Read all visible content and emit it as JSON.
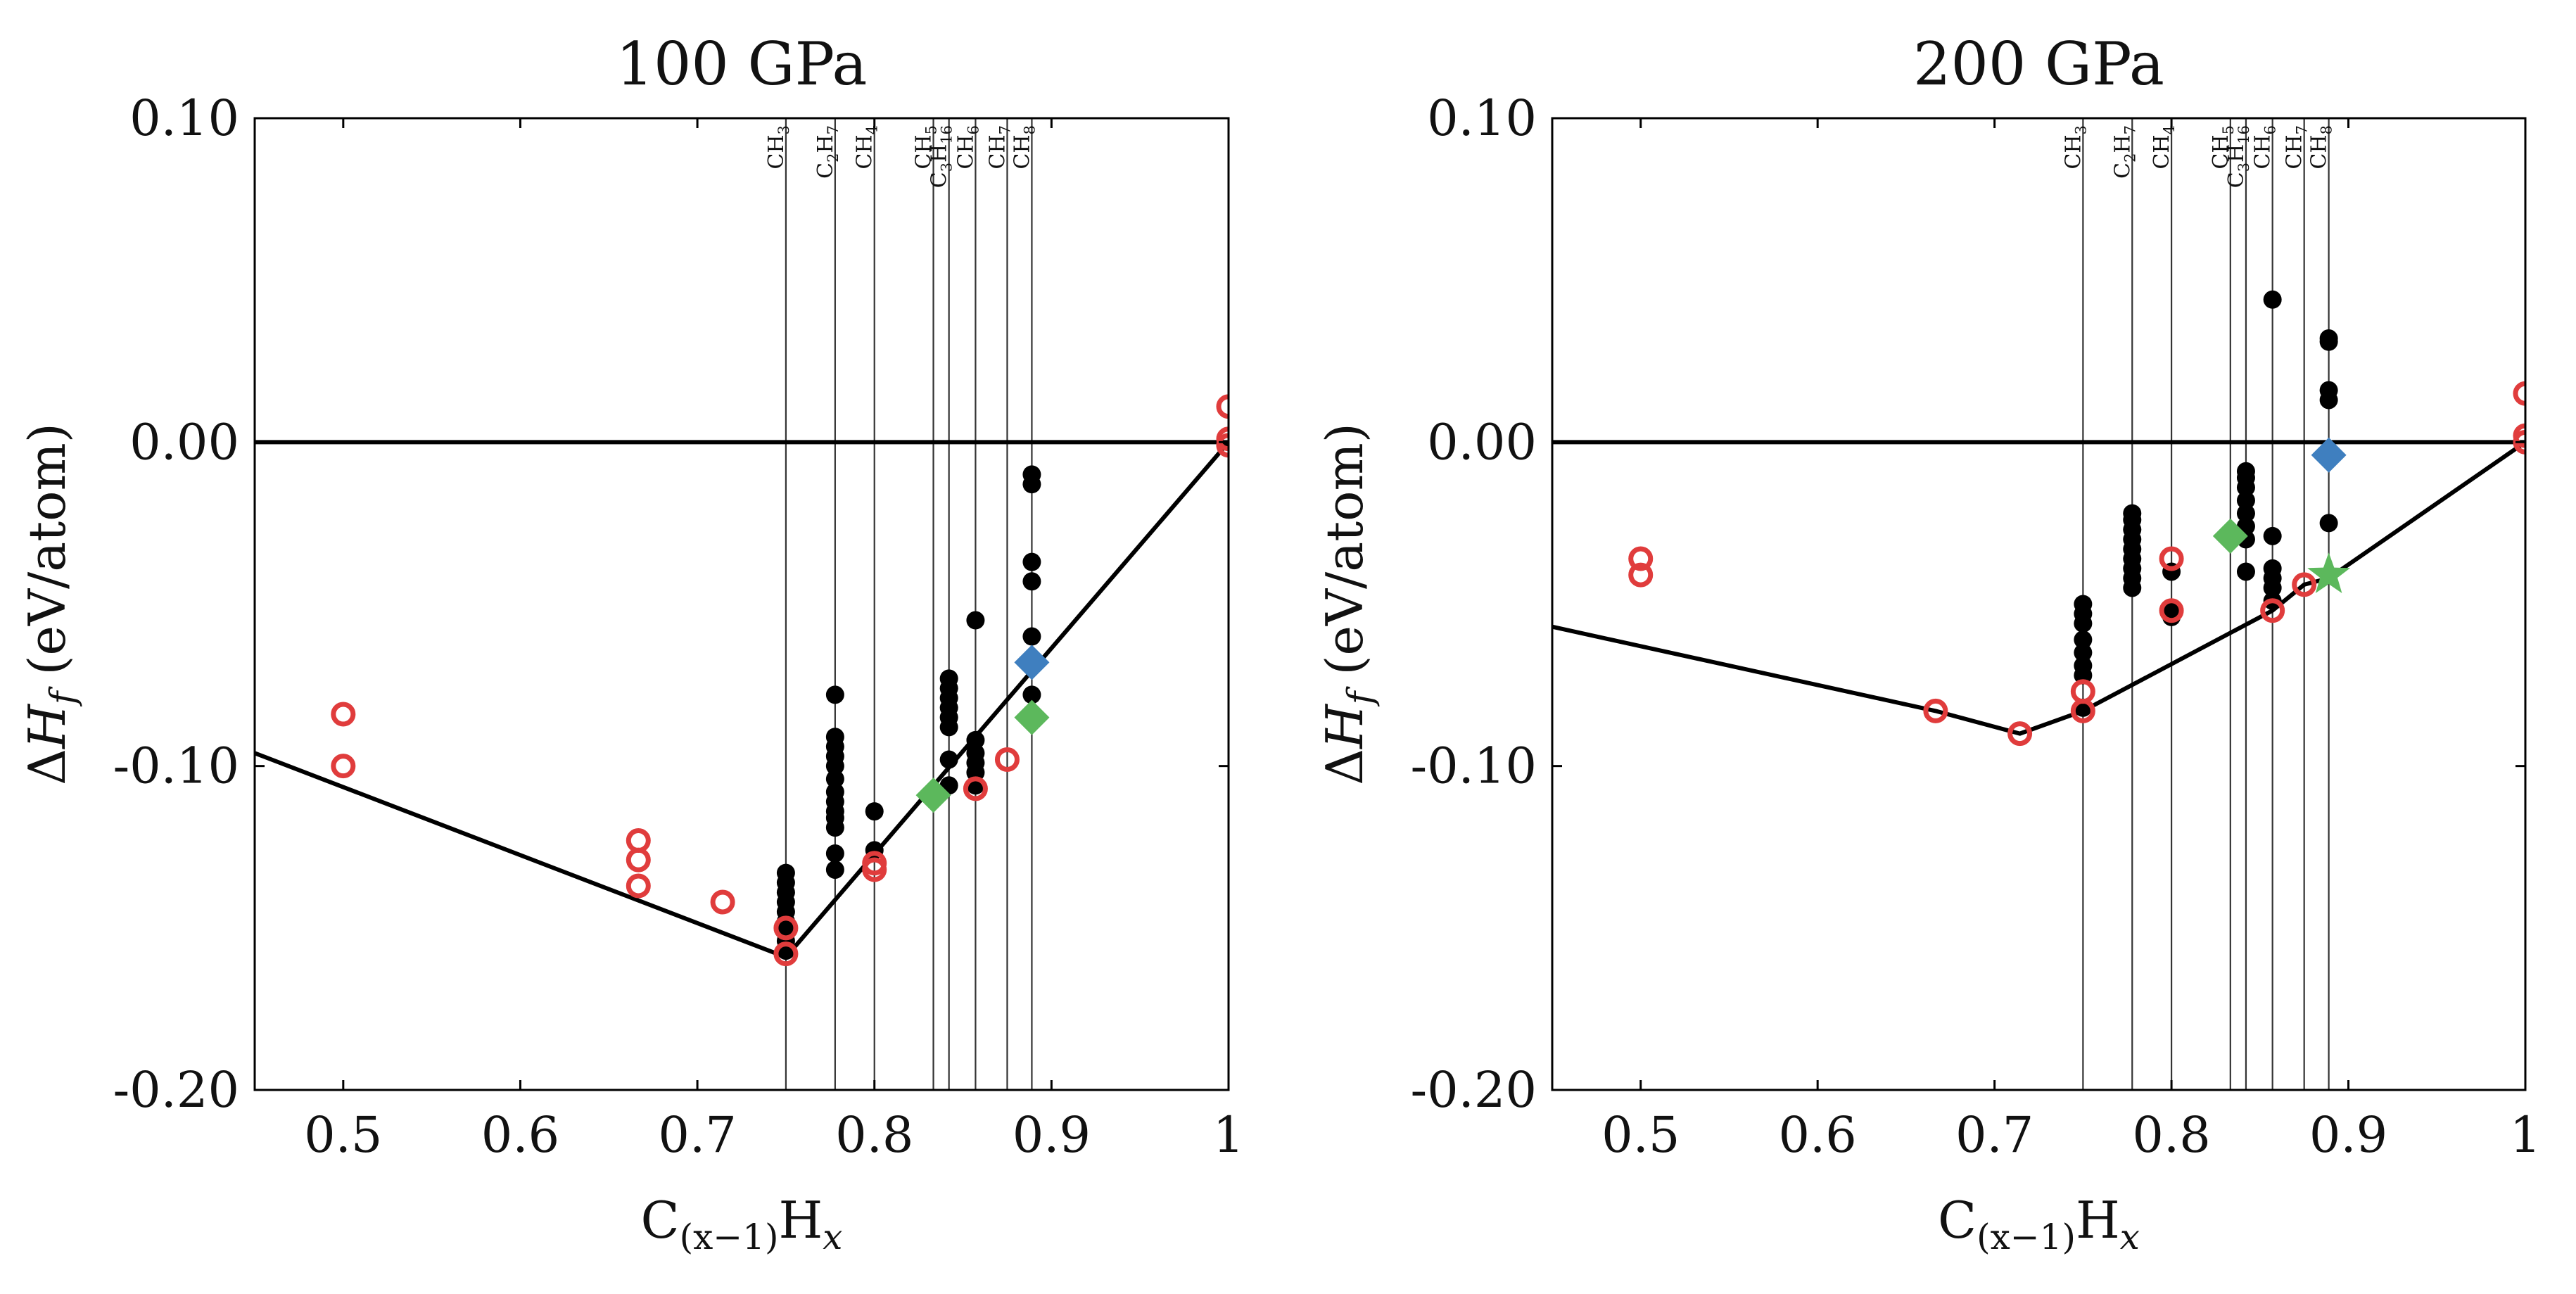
{
  "chart_data": [
    {
      "type": "scatter",
      "title": "100 GPa",
      "xlabel": {
        "base": "C",
        "sub": "(x−1)",
        "mid": "H",
        "sub2": "x"
      },
      "ylabel": {
        "delta": "Δ",
        "h": "H",
        "sub": "f",
        "rest": " (eV/atom)"
      },
      "xlim": [
        0.45,
        1.0
      ],
      "ylim": [
        -0.2,
        0.1
      ],
      "xticks": [
        0.5,
        0.6,
        0.7,
        0.8,
        0.9,
        1.0
      ],
      "xticklabels": [
        "0.5",
        "0.6",
        "0.7",
        "0.8",
        "0.9",
        "1"
      ],
      "yticks": [
        -0.2,
        -0.1,
        0.0,
        0.1
      ],
      "yticklabels": [
        "-0.20",
        "-0.10",
        "0.00",
        "0.10"
      ],
      "zero_line": true,
      "composition_lines": [
        {
          "x": 0.75,
          "base": "CH",
          "sub": "3"
        },
        {
          "x": 0.7778,
          "base": "C",
          "sub": "2",
          "base2": "H",
          "sub2": "7"
        },
        {
          "x": 0.8,
          "base": "CH",
          "sub": "4"
        },
        {
          "x": 0.8333,
          "base": "CH",
          "sub": "5"
        },
        {
          "x": 0.8421,
          "base": "C",
          "sub": "3",
          "base2": "H",
          "sub2": "16"
        },
        {
          "x": 0.8571,
          "base": "CH",
          "sub": "6"
        },
        {
          "x": 0.875,
          "base": "CH",
          "sub": "7"
        },
        {
          "x": 0.8889,
          "base": "CH",
          "sub": "8"
        }
      ],
      "hull": [
        [
          0.45,
          -0.096
        ],
        [
          0.75,
          -0.159
        ],
        [
          1.0,
          0.0
        ]
      ],
      "series": [
        {
          "name": "black points",
          "marker": "filled-circle",
          "color": "#000000",
          "points": [
            [
              0.75,
              -0.133
            ],
            [
              0.75,
              -0.136
            ],
            [
              0.75,
              -0.139
            ],
            [
              0.75,
              -0.142
            ],
            [
              0.75,
              -0.145
            ],
            [
              0.75,
              -0.148
            ],
            [
              0.75,
              -0.151
            ],
            [
              0.75,
              -0.154
            ],
            [
              0.75,
              -0.157
            ],
            [
              0.7778,
              -0.078
            ],
            [
              0.7778,
              -0.091
            ],
            [
              0.7778,
              -0.094
            ],
            [
              0.7778,
              -0.097
            ],
            [
              0.7778,
              -0.1
            ],
            [
              0.7778,
              -0.104
            ],
            [
              0.7778,
              -0.108
            ],
            [
              0.7778,
              -0.111
            ],
            [
              0.7778,
              -0.114
            ],
            [
              0.7778,
              -0.116
            ],
            [
              0.7778,
              -0.119
            ],
            [
              0.7778,
              -0.127
            ],
            [
              0.7778,
              -0.132
            ],
            [
              0.8,
              -0.114
            ],
            [
              0.8,
              -0.126
            ],
            [
              0.8421,
              -0.073
            ],
            [
              0.8421,
              -0.076
            ],
            [
              0.8421,
              -0.079
            ],
            [
              0.8421,
              -0.082
            ],
            [
              0.8421,
              -0.085
            ],
            [
              0.8421,
              -0.088
            ],
            [
              0.8421,
              -0.098
            ],
            [
              0.8421,
              -0.106
            ],
            [
              0.8571,
              -0.055
            ],
            [
              0.8571,
              -0.092
            ],
            [
              0.8571,
              -0.096
            ],
            [
              0.8571,
              -0.099
            ],
            [
              0.8571,
              -0.102
            ],
            [
              0.8571,
              -0.106
            ],
            [
              0.8889,
              -0.01
            ],
            [
              0.8889,
              -0.013
            ],
            [
              0.8889,
              -0.037
            ],
            [
              0.8889,
              -0.043
            ],
            [
              0.8889,
              -0.06
            ],
            [
              0.8889,
              -0.078
            ]
          ]
        },
        {
          "name": "red circles",
          "marker": "open-circle",
          "color": "#e03c3c",
          "points": [
            [
              0.5,
              -0.084
            ],
            [
              0.5,
              -0.1
            ],
            [
              0.6667,
              -0.123
            ],
            [
              0.6667,
              -0.129
            ],
            [
              0.6667,
              -0.137
            ],
            [
              0.7143,
              -0.142
            ],
            [
              0.75,
              -0.15
            ],
            [
              0.75,
              -0.158
            ],
            [
              0.8,
              -0.13
            ],
            [
              0.8,
              -0.132
            ],
            [
              0.8571,
              -0.107
            ],
            [
              0.875,
              -0.098
            ],
            [
              1.0,
              0.011
            ],
            [
              1.0,
              0.001
            ],
            [
              1.0,
              -0.001
            ]
          ]
        },
        {
          "name": "green diamonds",
          "marker": "diamond",
          "color": "#5cb85c",
          "points": [
            [
              0.8333,
              -0.109
            ],
            [
              0.8889,
              -0.085
            ]
          ]
        },
        {
          "name": "blue diamonds",
          "marker": "diamond",
          "color": "#3f7fbf",
          "points": [
            [
              0.8889,
              -0.068
            ]
          ]
        }
      ]
    },
    {
      "type": "scatter",
      "title": "200 GPa",
      "xlabel": {
        "base": "C",
        "sub": "(x−1)",
        "mid": "H",
        "sub2": "x"
      },
      "ylabel": {
        "delta": "Δ",
        "h": "H",
        "sub": "f",
        "rest": " (eV/atom)"
      },
      "xlim": [
        0.45,
        1.0
      ],
      "ylim": [
        -0.2,
        0.1
      ],
      "xticks": [
        0.5,
        0.6,
        0.7,
        0.8,
        0.9,
        1.0
      ],
      "xticklabels": [
        "0.5",
        "0.6",
        "0.7",
        "0.8",
        "0.9",
        "1"
      ],
      "yticks": [
        -0.2,
        -0.1,
        0.0,
        0.1
      ],
      "yticklabels": [
        "-0.20",
        "-0.10",
        "0.00",
        "0.10"
      ],
      "zero_line": true,
      "composition_lines": [
        {
          "x": 0.75,
          "base": "CH",
          "sub": "3"
        },
        {
          "x": 0.7778,
          "base": "C",
          "sub": "2",
          "base2": "H",
          "sub2": "7"
        },
        {
          "x": 0.8,
          "base": "CH",
          "sub": "4"
        },
        {
          "x": 0.8333,
          "base": "CH",
          "sub": "5"
        },
        {
          "x": 0.8421,
          "base": "C",
          "sub": "3",
          "base2": "H",
          "sub2": "16"
        },
        {
          "x": 0.8571,
          "base": "CH",
          "sub": "6"
        },
        {
          "x": 0.875,
          "base": "CH",
          "sub": "7"
        },
        {
          "x": 0.8889,
          "base": "CH",
          "sub": "8"
        }
      ],
      "hull": [
        [
          0.45,
          -0.057
        ],
        [
          0.6667,
          -0.083
        ],
        [
          0.7143,
          -0.09
        ],
        [
          0.75,
          -0.083
        ],
        [
          0.8571,
          -0.052
        ],
        [
          0.875,
          -0.044
        ],
        [
          0.8889,
          -0.042
        ],
        [
          1.0,
          0.0
        ]
      ],
      "series": [
        {
          "name": "black points",
          "marker": "filled-circle",
          "color": "#000000",
          "points": [
            [
              0.75,
              -0.05
            ],
            [
              0.75,
              -0.053
            ],
            [
              0.75,
              -0.056
            ],
            [
              0.75,
              -0.061
            ],
            [
              0.75,
              -0.065
            ],
            [
              0.75,
              -0.069
            ],
            [
              0.75,
              -0.072
            ],
            [
              0.75,
              -0.082
            ],
            [
              0.7778,
              -0.022
            ],
            [
              0.7778,
              -0.024
            ],
            [
              0.7778,
              -0.027
            ],
            [
              0.7778,
              -0.03
            ],
            [
              0.7778,
              -0.033
            ],
            [
              0.7778,
              -0.036
            ],
            [
              0.7778,
              -0.039
            ],
            [
              0.7778,
              -0.042
            ],
            [
              0.7778,
              -0.045
            ],
            [
              0.8,
              -0.04
            ],
            [
              0.8,
              -0.052
            ],
            [
              0.8,
              -0.054
            ],
            [
              0.8421,
              -0.009
            ],
            [
              0.8421,
              -0.011
            ],
            [
              0.8421,
              -0.014
            ],
            [
              0.8421,
              -0.018
            ],
            [
              0.8421,
              -0.022
            ],
            [
              0.8421,
              -0.026
            ],
            [
              0.8421,
              -0.03
            ],
            [
              0.8421,
              -0.04
            ],
            [
              0.8571,
              0.044
            ],
            [
              0.8571,
              -0.029
            ],
            [
              0.8571,
              -0.039
            ],
            [
              0.8571,
              -0.042
            ],
            [
              0.8571,
              -0.045
            ],
            [
              0.8571,
              -0.049
            ],
            [
              0.8889,
              0.032
            ],
            [
              0.8889,
              0.031
            ],
            [
              0.8889,
              0.016
            ],
            [
              0.8889,
              0.013
            ],
            [
              0.8889,
              -0.025
            ]
          ]
        },
        {
          "name": "red circles",
          "marker": "open-circle",
          "color": "#e03c3c",
          "points": [
            [
              0.5,
              -0.036
            ],
            [
              0.5,
              -0.041
            ],
            [
              0.6667,
              -0.083
            ],
            [
              0.7143,
              -0.09
            ],
            [
              0.75,
              -0.077
            ],
            [
              0.75,
              -0.083
            ],
            [
              0.8,
              -0.036
            ],
            [
              0.8,
              -0.052
            ],
            [
              0.8571,
              -0.052
            ],
            [
              0.875,
              -0.044
            ],
            [
              1.0,
              0.015
            ],
            [
              1.0,
              0.002
            ],
            [
              1.0,
              0.0
            ]
          ]
        },
        {
          "name": "green diamonds",
          "marker": "diamond",
          "color": "#5cb85c",
          "points": [
            [
              0.8333,
              -0.029
            ]
          ]
        },
        {
          "name": "green star",
          "marker": "star",
          "color": "#5cb85c",
          "points": [
            [
              0.8889,
              -0.041
            ]
          ]
        },
        {
          "name": "blue diamonds",
          "marker": "diamond",
          "color": "#3f7fbf",
          "points": [
            [
              0.8889,
              -0.004
            ]
          ]
        }
      ]
    }
  ]
}
